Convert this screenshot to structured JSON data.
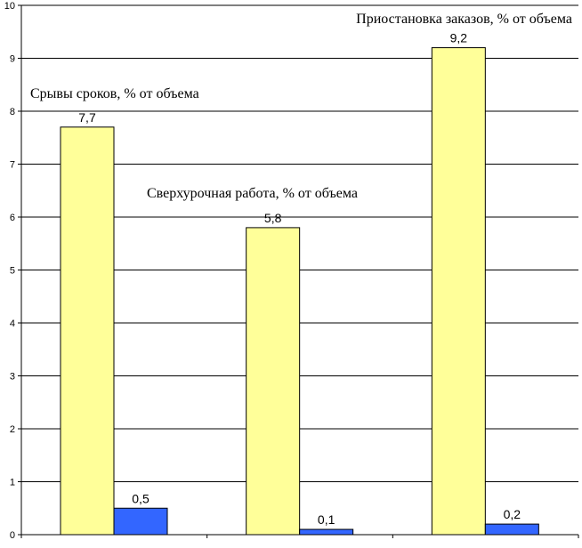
{
  "chart_data": {
    "type": "bar",
    "title": "",
    "xlabel": "",
    "ylabel": "",
    "ylim": [
      0,
      10
    ],
    "yticks": [
      0,
      1,
      2,
      3,
      4,
      5,
      6,
      7,
      8,
      9,
      10
    ],
    "grid": true,
    "legend": "none",
    "categories": [
      "Срывы сроков, % от объема",
      "Сверхурочная работа, % от объема",
      "Приостановка заказов, % от объема"
    ],
    "series": [
      {
        "values": [
          7.7,
          5.8,
          9.2
        ],
        "labels": [
          "7,7",
          "5,8",
          "9,2"
        ],
        "color": "#FFFF99",
        "border": "#000000"
      },
      {
        "values": [
          0.5,
          0.1,
          0.2
        ],
        "labels": [
          "0,5",
          "0,1",
          "0,2"
        ],
        "color": "#3366FF",
        "border": "#000000"
      }
    ]
  }
}
